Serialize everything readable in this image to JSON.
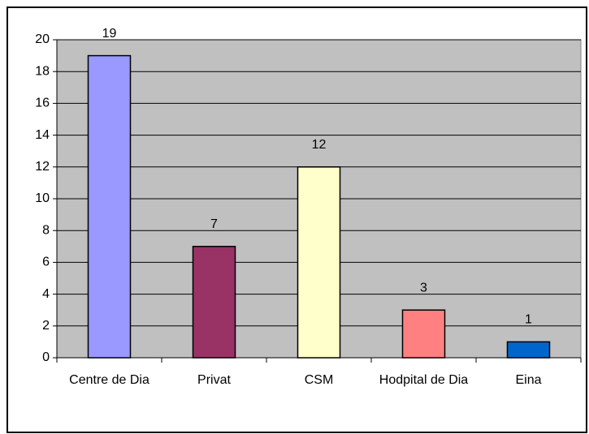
{
  "chart_data": {
    "type": "bar",
    "categories": [
      "Centre de Dia",
      "Privat",
      "CSM",
      "Hodpital de Dia",
      "Eina"
    ],
    "values": [
      19,
      7,
      12,
      3,
      1
    ],
    "colors": [
      "#9999ff",
      "#993366",
      "#ffffcc",
      "#ff8080",
      "#0066cc"
    ],
    "ylim": [
      0,
      20
    ],
    "yticks": [
      0,
      2,
      4,
      6,
      8,
      10,
      12,
      14,
      16,
      18,
      20
    ],
    "grid": true
  }
}
